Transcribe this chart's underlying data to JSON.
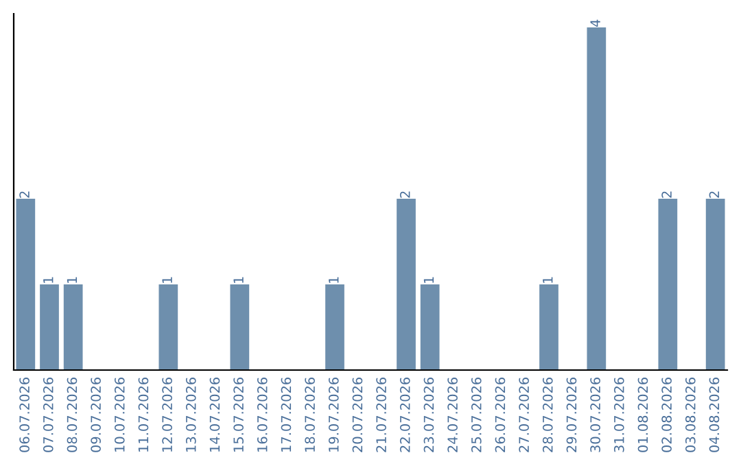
{
  "chart_data": {
    "type": "bar",
    "categories": [
      "06.07.2026",
      "07.07.2026",
      "08.07.2026",
      "09.07.2026",
      "10.07.2026",
      "11.07.2026",
      "12.07.2026",
      "13.07.2026",
      "14.07.2026",
      "15.07.2026",
      "16.07.2026",
      "17.07.2026",
      "18.07.2026",
      "19.07.2026",
      "20.07.2026",
      "21.07.2026",
      "22.07.2026",
      "23.07.2026",
      "24.07.2026",
      "25.07.2026",
      "26.07.2026",
      "27.07.2026",
      "28.07.2026",
      "29.07.2026",
      "30.07.2026",
      "31.07.2026",
      "01.08.2026",
      "02.08.2026",
      "03.08.2026",
      "04.08.2026"
    ],
    "values": [
      2,
      1,
      1,
      0,
      0,
      0,
      1,
      0,
      0,
      1,
      0,
      0,
      0,
      1,
      0,
      0,
      2,
      1,
      0,
      0,
      0,
      0,
      1,
      0,
      4,
      0,
      0,
      2,
      0,
      2
    ],
    "value_labels": [
      "2",
      "1",
      "1",
      null,
      null,
      null,
      "1",
      null,
      null,
      "1",
      null,
      null,
      null,
      "1",
      null,
      null,
      "2",
      "1",
      null,
      null,
      null,
      null,
      "1",
      null,
      "4",
      null,
      null,
      "2",
      null,
      "2"
    ],
    "color": "#6e8fad",
    "grid": false,
    "legend": false,
    "tick_labels": "x"
  }
}
